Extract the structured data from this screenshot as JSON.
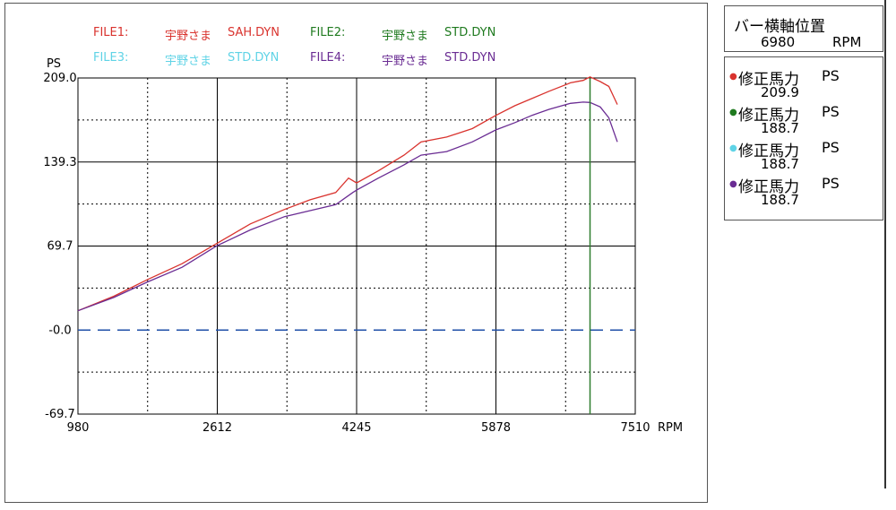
{
  "legend": [
    {
      "file": "FILE1:",
      "customer": "宇野さま",
      "name": "SAH.DYN",
      "color": "#d9332e"
    },
    {
      "file": "FILE2:",
      "customer": "宇野さま",
      "name": "STD.DYN",
      "color": "#1f7a1f"
    },
    {
      "file": "FILE3:",
      "customer": "宇野さま",
      "name": "STD.DYN",
      "color": "#5fd3e6"
    },
    {
      "file": "FILE4:",
      "customer": "宇野さま",
      "name": "STD.DYN",
      "color": "#6a2c93"
    }
  ],
  "bar_position": {
    "title": "バー横軸位置",
    "value": "6980",
    "unit": "RPM"
  },
  "readouts": [
    {
      "label": "修正馬力",
      "unit": "PS",
      "value": "209.9",
      "color": "#d9332e"
    },
    {
      "label": "修正馬力",
      "unit": "PS",
      "value": "188.7",
      "color": "#1f7a1f"
    },
    {
      "label": "修正馬力",
      "unit": "PS",
      "value": "188.7",
      "color": "#5fd3e6"
    },
    {
      "label": "修正馬力",
      "unit": "PS",
      "value": "188.7",
      "color": "#6a2c93"
    }
  ],
  "chart_data": {
    "type": "line",
    "ylabel": "PS",
    "xlabel": "RPM",
    "xlim": [
      980,
      7510
    ],
    "ylim": [
      -69.7,
      209.0
    ],
    "x_ticks": [
      "980",
      "2612",
      "4245",
      "5878",
      "7510"
    ],
    "y_ticks": [
      "209.0",
      "139.3",
      "69.7",
      "-0.0",
      "-69.7"
    ],
    "grid": true,
    "cursor_x": 6980,
    "cursor_color": "#2e7d2e",
    "zero_line_color": "#1f4fa8",
    "series": [
      {
        "name": "SAH.DYN",
        "color": "#d9332e",
        "x": [
          980,
          1400,
          1800,
          2200,
          2612,
          3000,
          3400,
          3700,
          4000,
          4150,
          4245,
          4500,
          4800,
          5000,
          5300,
          5600,
          5878,
          6100,
          6300,
          6500,
          6750,
          6900,
          6980,
          7100,
          7200,
          7300
        ],
        "y": [
          16,
          28,
          42,
          55,
          72,
          88,
          100,
          108,
          114,
          126,
          122,
          132,
          145,
          156,
          160,
          167,
          178,
          186,
          192,
          198,
          205,
          207,
          209.9,
          206,
          202,
          187
        ]
      },
      {
        "name": "STD.DYN",
        "color": "#6a2c93",
        "x": [
          980,
          1400,
          1800,
          2200,
          2612,
          3000,
          3400,
          3700,
          4000,
          4200,
          4245,
          4500,
          4800,
          5000,
          5300,
          5600,
          5878,
          6100,
          6300,
          6500,
          6750,
          6900,
          6980,
          7100,
          7200,
          7300
        ],
        "y": [
          16,
          27,
          40,
          52,
          70,
          83,
          94,
          99,
          104,
          114,
          116,
          126,
          137,
          145,
          148,
          156,
          166,
          172,
          178,
          183,
          188,
          189,
          188.7,
          185,
          176,
          156
        ]
      }
    ]
  }
}
